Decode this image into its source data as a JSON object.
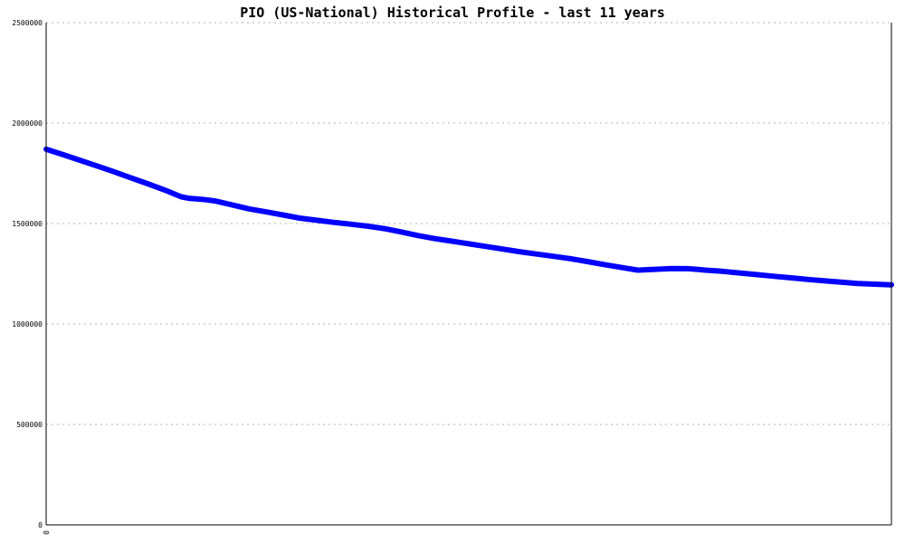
{
  "chart_data": {
    "type": "line",
    "title": "PIO (US-National) Historical Profile - last 11 years",
    "xlabel": "",
    "ylabel": "",
    "ylim": [
      0,
      2500000
    ],
    "yticks": [
      "0",
      "500000",
      "1000000",
      "1500000",
      "2000000",
      "2500000"
    ],
    "xticks": [
      "0"
    ],
    "grid": true,
    "legend": "none",
    "x": [
      0,
      2,
      4,
      6,
      8,
      10,
      12,
      14,
      16,
      17,
      18,
      19,
      20,
      22,
      24,
      26,
      28,
      30,
      32,
      34,
      36,
      38,
      40,
      42,
      44,
      46,
      48,
      50,
      52,
      54,
      56,
      58,
      60,
      62,
      64,
      66,
      68,
      70,
      72,
      74,
      76,
      77,
      78,
      80,
      82,
      84,
      86,
      88,
      90,
      92,
      94,
      96,
      98,
      100
    ],
    "series": [
      {
        "values": [
          1870000,
          1843000,
          1815000,
          1787000,
          1758000,
          1728000,
          1698000,
          1667000,
          1633000,
          1625000,
          1622000,
          1618000,
          1612000,
          1593000,
          1573000,
          1558000,
          1543000,
          1527000,
          1516000,
          1506000,
          1497000,
          1487000,
          1475000,
          1458000,
          1440000,
          1425000,
          1412000,
          1399000,
          1386000,
          1373000,
          1360000,
          1348000,
          1337000,
          1325000,
          1311000,
          1296000,
          1282000,
          1268000,
          1272000,
          1276000,
          1275000,
          1272000,
          1268000,
          1262000,
          1254000,
          1246000,
          1238000,
          1230000,
          1222000,
          1215000,
          1208000,
          1202000,
          1198000,
          1195000
        ],
        "color": "#0000ff"
      }
    ]
  }
}
